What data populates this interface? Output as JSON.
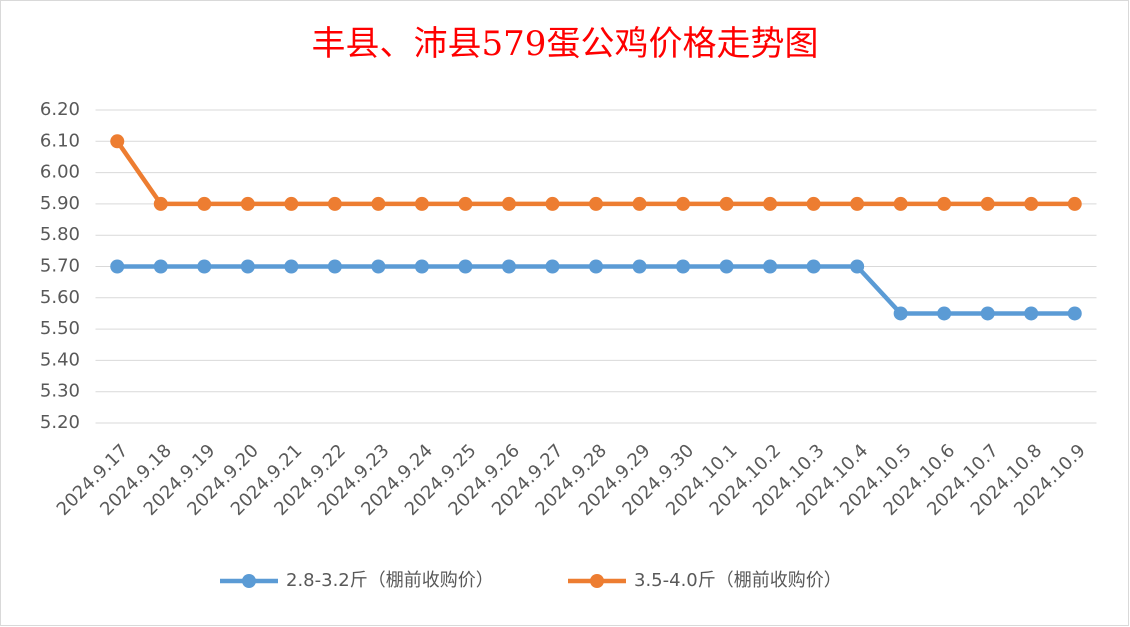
{
  "chart_data": {
    "type": "line",
    "title": "丰县、沛县579蛋公鸡价格走势图",
    "categories": [
      "2024.9.17",
      "2024.9.18",
      "2024.9.19",
      "2024.9.20",
      "2024.9.21",
      "2024.9.22",
      "2024.9.23",
      "2024.9.24",
      "2024.9.25",
      "2024.9.26",
      "2024.9.27",
      "2024.9.28",
      "2024.9.29",
      "2024.9.30",
      "2024.10.1",
      "2024.10.2",
      "2024.10.3",
      "2024.10.4",
      "2024.10.5",
      "2024.10.6",
      "2024.10.7",
      "2024.10.8",
      "2024.10.9"
    ],
    "series": [
      {
        "name": "2.8-3.2斤（棚前收购价）",
        "color": "#5b9bd5",
        "values": [
          5.7,
          5.7,
          5.7,
          5.7,
          5.7,
          5.7,
          5.7,
          5.7,
          5.7,
          5.7,
          5.7,
          5.7,
          5.7,
          5.7,
          5.7,
          5.7,
          5.7,
          5.7,
          5.55,
          5.55,
          5.55,
          5.55,
          5.55
        ]
      },
      {
        "name": "3.5-4.0斤（棚前收购价）",
        "color": "#ed7d31",
        "values": [
          6.1,
          5.9,
          5.9,
          5.9,
          5.9,
          5.9,
          5.9,
          5.9,
          5.9,
          5.9,
          5.9,
          5.9,
          5.9,
          5.9,
          5.9,
          5.9,
          5.9,
          5.9,
          5.9,
          5.9,
          5.9,
          5.9,
          5.9
        ]
      }
    ],
    "ylim": [
      5.2,
      6.2
    ],
    "yticks": [
      {
        "value": 5.2,
        "label": "5.20"
      },
      {
        "value": 5.3,
        "label": "5.30"
      },
      {
        "value": 5.4,
        "label": "5.40"
      },
      {
        "value": 5.5,
        "label": "5.50"
      },
      {
        "value": 5.6,
        "label": "5.60"
      },
      {
        "value": 5.7,
        "label": "5.70"
      },
      {
        "value": 5.8,
        "label": "5.80"
      },
      {
        "value": 5.9,
        "label": "5.90"
      },
      {
        "value": 6.0,
        "label": "6.00"
      },
      {
        "value": 6.1,
        "label": "6.10"
      },
      {
        "value": 6.2,
        "label": "6.20"
      }
    ],
    "grid": true,
    "legend": "bottom",
    "title_color": "#ff0000"
  }
}
